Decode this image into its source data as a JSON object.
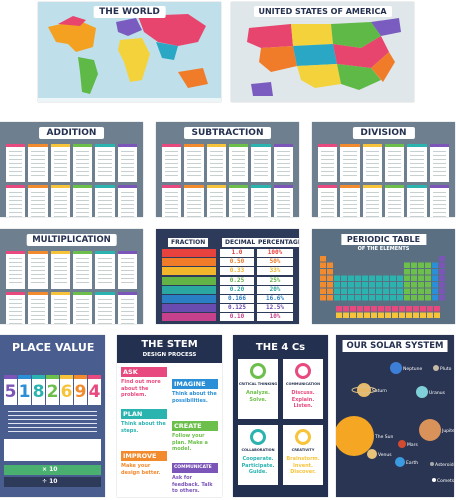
{
  "maps": {
    "world_title": "THE WORLD",
    "usa_title": "UNITED STATES OF AMERICA"
  },
  "math": {
    "addition": "ADDITION",
    "subtraction": "SUBTRACTION",
    "division": "DIVISION",
    "multiplication": "MULTIPLICATION"
  },
  "fractions": {
    "headers": [
      "FRACTION",
      "DECIMAL",
      "PERCENTAGE"
    ],
    "rows": [
      {
        "decimal": "1.0",
        "percent": "100%",
        "color": "#e8423f"
      },
      {
        "decimal": "0.50",
        "percent": "50%",
        "color": "#f07c2a"
      },
      {
        "decimal": "0.33",
        "percent": "33%",
        "color": "#f3b52b"
      },
      {
        "decimal": "0.25",
        "percent": "25%",
        "color": "#62b446"
      },
      {
        "decimal": "0.20",
        "percent": "20%",
        "color": "#2aa7a0"
      },
      {
        "decimal": "0.166",
        "percent": "16.6%",
        "color": "#2a7fc4"
      },
      {
        "decimal": "0.125",
        "percent": "12.5%",
        "color": "#6a4bb0"
      },
      {
        "decimal": "0.10",
        "percent": "10%",
        "color": "#c7408c"
      }
    ]
  },
  "periodic": {
    "title": "PERIODIC TABLE",
    "subtitle": "OF THE ELEMENTS"
  },
  "place_value": {
    "title": "PLACE VALUE",
    "digits": [
      "5",
      "1",
      "8",
      "2",
      "6",
      "9",
      "4"
    ],
    "x10": "× 10",
    "div10": "÷ 10"
  },
  "stem": {
    "title": "THE STEM",
    "subtitle": "DESIGN PROCESS",
    "steps": [
      {
        "label": "ASK",
        "text": "Find out more about the problem."
      },
      {
        "label": "IMAGINE",
        "text": "Think about the possibilities."
      },
      {
        "label": "PLAN",
        "text": "Think about the steps."
      },
      {
        "label": "CREATE",
        "text": "Follow your plan. Make a model."
      },
      {
        "label": "IMPROVE",
        "text": "Make your design better."
      },
      {
        "label": "COMMUNICATE",
        "text": "Ask for feedback. Talk to others."
      }
    ]
  },
  "four_cs": {
    "title": "THE 4 Cs",
    "items": [
      {
        "label": "CRITICAL THINKING",
        "text": "Analyze. Solve."
      },
      {
        "label": "COMMUNICATION",
        "text": "Discuss. Explain. Listen."
      },
      {
        "label": "COLLABORATION",
        "text": "Cooperate. Participate. Guide."
      },
      {
        "label": "CREATIVITY",
        "text": "Brainstorm. Invent. Discover."
      }
    ]
  },
  "solar": {
    "title": "OUR SOLAR SYSTEM",
    "planets": [
      "Neptune",
      "Pluto",
      "Saturn",
      "Uranus",
      "Jupiter",
      "Mars",
      "Venus",
      "Earth",
      "Asteroids",
      "Comets",
      "The Sun"
    ]
  },
  "colors": {
    "pink": "#e84a7f",
    "orange": "#f28a2e",
    "yellow": "#f6c33a",
    "green": "#6cbf4a",
    "teal": "#2bb3b0",
    "blue": "#2a8fd6",
    "purple": "#7b55b8",
    "navy": "#24304f",
    "slate": "#6e8090"
  }
}
